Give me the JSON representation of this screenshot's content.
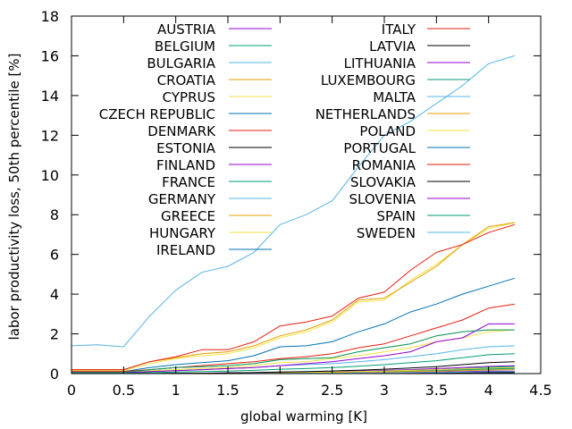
{
  "chart_data": {
    "type": "line",
    "xlabel": "global warming [K]",
    "ylabel": "labor productivity loss, 50th percentile [%]",
    "xlim": [
      0,
      4.5
    ],
    "ylim": [
      0,
      18
    ],
    "xticks": [
      "0",
      "0.5",
      "1",
      "1.5",
      "2",
      "2.5",
      "3",
      "3.5",
      "4",
      "4.5"
    ],
    "yticks": [
      "0",
      "2",
      "4",
      "6",
      "8",
      "10",
      "12",
      "14",
      "16",
      "18"
    ],
    "grid": false,
    "legend": "two columns, top",
    "x": [
      0,
      0.25,
      0.5,
      0.75,
      1,
      1.25,
      1.5,
      1.75,
      2,
      2.25,
      2.5,
      2.75,
      3,
      3.25,
      3.5,
      3.75,
      4,
      4.25
    ],
    "series": [
      {
        "name": "AUSTRIA",
        "color": "#9400d3",
        "values": [
          0,
          0,
          0,
          0,
          0.01,
          0.02,
          0.03,
          0.05,
          0.07,
          0.08,
          0.1,
          0.13,
          0.16,
          0.2,
          0.25,
          0.3,
          0.36,
          0.4
        ]
      },
      {
        "name": "BELGIUM",
        "color": "#009e73",
        "values": [
          0,
          0,
          0,
          0,
          0,
          0.01,
          0.02,
          0.03,
          0.04,
          0.05,
          0.07,
          0.09,
          0.12,
          0.16,
          0.2,
          0.25,
          0.32,
          0.36
        ]
      },
      {
        "name": "BULGARIA",
        "color": "#56b4e9",
        "values": [
          0.05,
          0.05,
          0.05,
          0.1,
          0.15,
          0.2,
          0.25,
          0.3,
          0.4,
          0.45,
          0.5,
          0.6,
          0.7,
          0.85,
          1.0,
          1.2,
          1.35,
          1.4
        ]
      },
      {
        "name": "CROATIA",
        "color": "#e69f00",
        "values": [
          0.1,
          0.1,
          0.1,
          0.2,
          0.3,
          0.35,
          0.4,
          0.5,
          0.7,
          0.75,
          0.8,
          1.1,
          1.3,
          1.5,
          1.9,
          2.1,
          2.2,
          2.2
        ]
      },
      {
        "name": "CYPRUS",
        "color": "#f0e442",
        "values": [
          0.15,
          0.15,
          0.15,
          0.5,
          0.75,
          0.9,
          1.0,
          1.3,
          1.8,
          2.1,
          2.6,
          3.6,
          3.7,
          4.7,
          5.5,
          6.5,
          7.3,
          7.6
        ]
      },
      {
        "name": "CZECH REPUBLIC",
        "color": "#0072b2",
        "values": [
          0,
          0,
          0,
          0,
          0,
          0.01,
          0.02,
          0.03,
          0.05,
          0.06,
          0.08,
          0.1,
          0.13,
          0.16,
          0.2,
          0.24,
          0.28,
          0.3
        ]
      },
      {
        "name": "DENMARK",
        "color": "#e51e10",
        "values": [
          0,
          0,
          0,
          0,
          0,
          0,
          0,
          0.01,
          0.01,
          0.02,
          0.02,
          0.03,
          0.04,
          0.05,
          0.06,
          0.08,
          0.1,
          0.1
        ]
      },
      {
        "name": "ESTONIA",
        "color": "#000000",
        "values": [
          0,
          0,
          0,
          0,
          0,
          0,
          0,
          0,
          0.01,
          0.01,
          0.01,
          0.02,
          0.02,
          0.03,
          0.04,
          0.05,
          0.06,
          0.06
        ]
      },
      {
        "name": "FINLAND",
        "color": "#9400d3",
        "values": [
          0,
          0,
          0,
          0,
          0,
          0,
          0,
          0,
          0,
          0.01,
          0.01,
          0.01,
          0.02,
          0.02,
          0.03,
          0.03,
          0.04,
          0.04
        ]
      },
      {
        "name": "FRANCE",
        "color": "#009e73",
        "values": [
          0.02,
          0.02,
          0.02,
          0.05,
          0.08,
          0.1,
          0.12,
          0.16,
          0.22,
          0.25,
          0.3,
          0.37,
          0.45,
          0.55,
          0.65,
          0.8,
          0.95,
          1.0
        ]
      },
      {
        "name": "GERMANY",
        "color": "#56b4e9",
        "values": [
          0,
          0,
          0,
          0,
          0.01,
          0.01,
          0.02,
          0.03,
          0.04,
          0.05,
          0.06,
          0.08,
          0.1,
          0.12,
          0.15,
          0.18,
          0.22,
          0.25
        ]
      },
      {
        "name": "GREECE",
        "color": "#e69f00",
        "values": [
          0.2,
          0.2,
          0.2,
          0.6,
          0.8,
          1.0,
          1.1,
          1.4,
          1.9,
          2.2,
          2.7,
          3.7,
          3.8,
          4.6,
          5.4,
          6.5,
          7.4,
          7.6
        ]
      },
      {
        "name": "HUNGARY",
        "color": "#f0e442",
        "values": [
          0.05,
          0.05,
          0.05,
          0.15,
          0.2,
          0.25,
          0.3,
          0.4,
          0.55,
          0.6,
          0.75,
          0.9,
          1.1,
          1.3,
          1.6,
          1.8,
          2.1,
          2.2
        ]
      },
      {
        "name": "IRELAND",
        "color": "#0072b2",
        "values": [
          0,
          0,
          0,
          0,
          0,
          0,
          0,
          0,
          0,
          0,
          0,
          0,
          0,
          0.01,
          0.01,
          0.01,
          0.02,
          0.02
        ]
      },
      {
        "name": "ITALY",
        "color": "#e51e10",
        "values": [
          0.2,
          0.2,
          0.2,
          0.6,
          0.85,
          1.2,
          1.2,
          1.6,
          2.4,
          2.6,
          2.9,
          3.8,
          4.1,
          5.2,
          6.1,
          6.5,
          7.1,
          7.5
        ]
      },
      {
        "name": "LATVIA",
        "color": "#000000",
        "values": [
          0,
          0,
          0,
          0,
          0,
          0,
          0,
          0,
          0.01,
          0.01,
          0.01,
          0.02,
          0.02,
          0.03,
          0.04,
          0.05,
          0.06,
          0.06
        ]
      },
      {
        "name": "LITHUANIA",
        "color": "#9400d3",
        "values": [
          0,
          0,
          0,
          0,
          0,
          0.01,
          0.01,
          0.01,
          0.02,
          0.02,
          0.03,
          0.04,
          0.05,
          0.06,
          0.08,
          0.1,
          0.12,
          0.12
        ]
      },
      {
        "name": "LUXEMBOURG",
        "color": "#009e73",
        "values": [
          0,
          0,
          0,
          0,
          0.01,
          0.01,
          0.02,
          0.03,
          0.04,
          0.05,
          0.06,
          0.08,
          0.1,
          0.13,
          0.16,
          0.2,
          0.24,
          0.26
        ]
      },
      {
        "name": "MALTA",
        "color": "#56b4e9",
        "values": [
          1.4,
          1.45,
          1.35,
          2.9,
          4.2,
          5.1,
          5.4,
          6.1,
          7.5,
          8.0,
          8.7,
          10.4,
          12.0,
          12.7,
          13.6,
          14.5,
          15.6,
          16.0
        ]
      },
      {
        "name": "NETHERLANDS",
        "color": "#e69f00",
        "values": [
          0,
          0,
          0,
          0,
          0,
          0.01,
          0.01,
          0.02,
          0.03,
          0.04,
          0.05,
          0.06,
          0.08,
          0.1,
          0.12,
          0.15,
          0.18,
          0.2
        ]
      },
      {
        "name": "POLAND",
        "color": "#f0e442",
        "values": [
          0,
          0,
          0,
          0,
          0,
          0.01,
          0.02,
          0.03,
          0.05,
          0.06,
          0.08,
          0.1,
          0.13,
          0.16,
          0.2,
          0.24,
          0.28,
          0.3
        ]
      },
      {
        "name": "PORTUGAL",
        "color": "#0072b2",
        "values": [
          0.1,
          0.1,
          0.1,
          0.3,
          0.45,
          0.55,
          0.65,
          0.9,
          1.35,
          1.4,
          1.6,
          2.1,
          2.5,
          3.1,
          3.5,
          4.0,
          4.4,
          4.8
        ]
      },
      {
        "name": "ROMANIA",
        "color": "#e51e10",
        "values": [
          0.1,
          0.1,
          0.1,
          0.2,
          0.3,
          0.4,
          0.5,
          0.6,
          0.75,
          0.85,
          1.0,
          1.3,
          1.5,
          1.9,
          2.3,
          2.7,
          3.3,
          3.5
        ]
      },
      {
        "name": "SLOVAKIA",
        "color": "#000000",
        "values": [
          0,
          0,
          0,
          0,
          0.01,
          0.02,
          0.03,
          0.05,
          0.08,
          0.1,
          0.13,
          0.17,
          0.22,
          0.28,
          0.35,
          0.45,
          0.55,
          0.6
        ]
      },
      {
        "name": "SLOVENIA",
        "color": "#9400d3",
        "values": [
          0.05,
          0.05,
          0.05,
          0.1,
          0.15,
          0.2,
          0.25,
          0.3,
          0.4,
          0.5,
          0.6,
          0.75,
          0.9,
          1.1,
          1.6,
          1.8,
          2.5,
          2.5
        ]
      },
      {
        "name": "SPAIN",
        "color": "#009e73",
        "values": [
          0.05,
          0.05,
          0.05,
          0.2,
          0.3,
          0.35,
          0.4,
          0.5,
          0.7,
          0.75,
          0.8,
          1.1,
          1.3,
          1.5,
          1.9,
          2.1,
          2.2,
          2.2
        ]
      },
      {
        "name": "SWEDEN",
        "color": "#56b4e9",
        "values": [
          0,
          0,
          0,
          0,
          0,
          0,
          0,
          0.01,
          0.01,
          0.02,
          0.02,
          0.03,
          0.04,
          0.05,
          0.06,
          0.07,
          0.09,
          0.1
        ]
      }
    ]
  }
}
